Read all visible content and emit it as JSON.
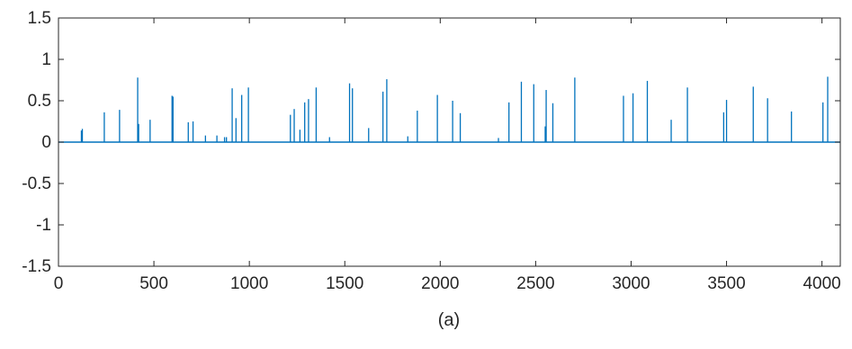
{
  "chart_data": {
    "type": "line",
    "caption": "(a)",
    "title": "",
    "xlabel": "",
    "ylabel": "",
    "xlim": [
      0,
      4096
    ],
    "ylim": [
      -1.5,
      1.5
    ],
    "xticks": [
      0,
      500,
      1000,
      1500,
      2000,
      2500,
      3000,
      3500,
      4000
    ],
    "yticks": [
      -1.5,
      -1,
      -0.5,
      0,
      0.5,
      1,
      1.5
    ],
    "grid": false,
    "legend": "none",
    "series": [
      {
        "color": "#0072BD",
        "spikes": [
          [
            120,
            0.14
          ],
          [
            125,
            0.16
          ],
          [
            240,
            0.36
          ],
          [
            320,
            0.39
          ],
          [
            415,
            0.78
          ],
          [
            420,
            0.22
          ],
          [
            480,
            0.27
          ],
          [
            595,
            0.56
          ],
          [
            600,
            0.55
          ],
          [
            680,
            0.24
          ],
          [
            705,
            0.25
          ],
          [
            770,
            0.08
          ],
          [
            830,
            0.08
          ],
          [
            870,
            0.06
          ],
          [
            880,
            0.06
          ],
          [
            910,
            0.65
          ],
          [
            930,
            0.29
          ],
          [
            960,
            0.57
          ],
          [
            995,
            0.66
          ],
          [
            1215,
            0.33
          ],
          [
            1235,
            0.4
          ],
          [
            1265,
            0.15
          ],
          [
            1290,
            0.48
          ],
          [
            1310,
            0.52
          ],
          [
            1350,
            0.66
          ],
          [
            1420,
            0.06
          ],
          [
            1525,
            0.71
          ],
          [
            1540,
            0.65
          ],
          [
            1625,
            0.17
          ],
          [
            1700,
            0.61
          ],
          [
            1720,
            0.76
          ],
          [
            1830,
            0.07
          ],
          [
            1880,
            0.38
          ],
          [
            1985,
            0.57
          ],
          [
            2065,
            0.5
          ],
          [
            2105,
            0.35
          ],
          [
            2305,
            0.05
          ],
          [
            2360,
            0.48
          ],
          [
            2425,
            0.73
          ],
          [
            2490,
            0.7
          ],
          [
            2550,
            0.19
          ],
          [
            2555,
            0.63
          ],
          [
            2590,
            0.47
          ],
          [
            2705,
            0.78
          ],
          [
            2960,
            0.56
          ],
          [
            3010,
            0.59
          ],
          [
            3085,
            0.74
          ],
          [
            3210,
            0.27
          ],
          [
            3295,
            0.66
          ],
          [
            3485,
            0.36
          ],
          [
            3500,
            0.51
          ],
          [
            3640,
            0.67
          ],
          [
            3715,
            0.53
          ],
          [
            3840,
            0.37
          ],
          [
            4005,
            0.48
          ],
          [
            4030,
            0.79
          ]
        ]
      }
    ]
  }
}
